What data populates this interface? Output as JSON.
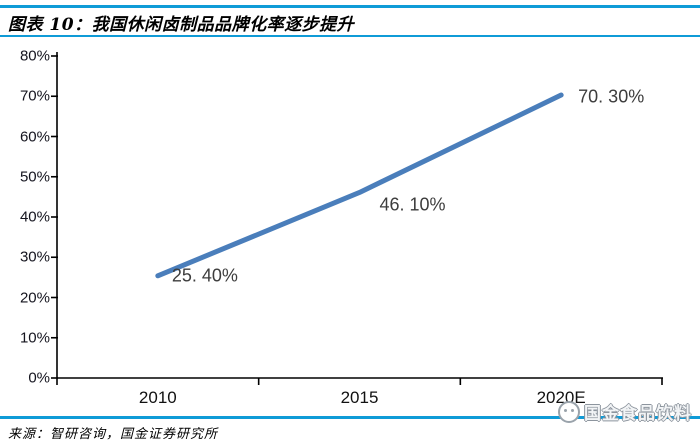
{
  "header": {
    "title": "图表 10：我国休闲卤制品品牌化率逐步提升"
  },
  "footer": {
    "source": "来源：智研咨询，国金证券研究所",
    "watermark": "国金食品饮料"
  },
  "colors": {
    "accent_rule": "#0f9bd7",
    "line": "#4a7ebb",
    "axis": "#000000"
  },
  "chart_data": {
    "type": "line",
    "title": "我国休闲卤制品品牌化率逐步提升",
    "categories": [
      "2010",
      "2015",
      "2020E"
    ],
    "values": [
      25.4,
      46.1,
      70.3
    ],
    "data_labels": [
      "25. 40%",
      "46. 10%",
      "70. 30%"
    ],
    "xlabel": "",
    "ylabel": "",
    "ylim": [
      0,
      80
    ],
    "ytick_step": 10,
    "ytick_labels": [
      "0%",
      "10%",
      "20%",
      "30%",
      "40%",
      "50%",
      "60%",
      "70%",
      "80%"
    ],
    "grid": false,
    "legend": "none",
    "line_color": "#4a7ebb"
  }
}
